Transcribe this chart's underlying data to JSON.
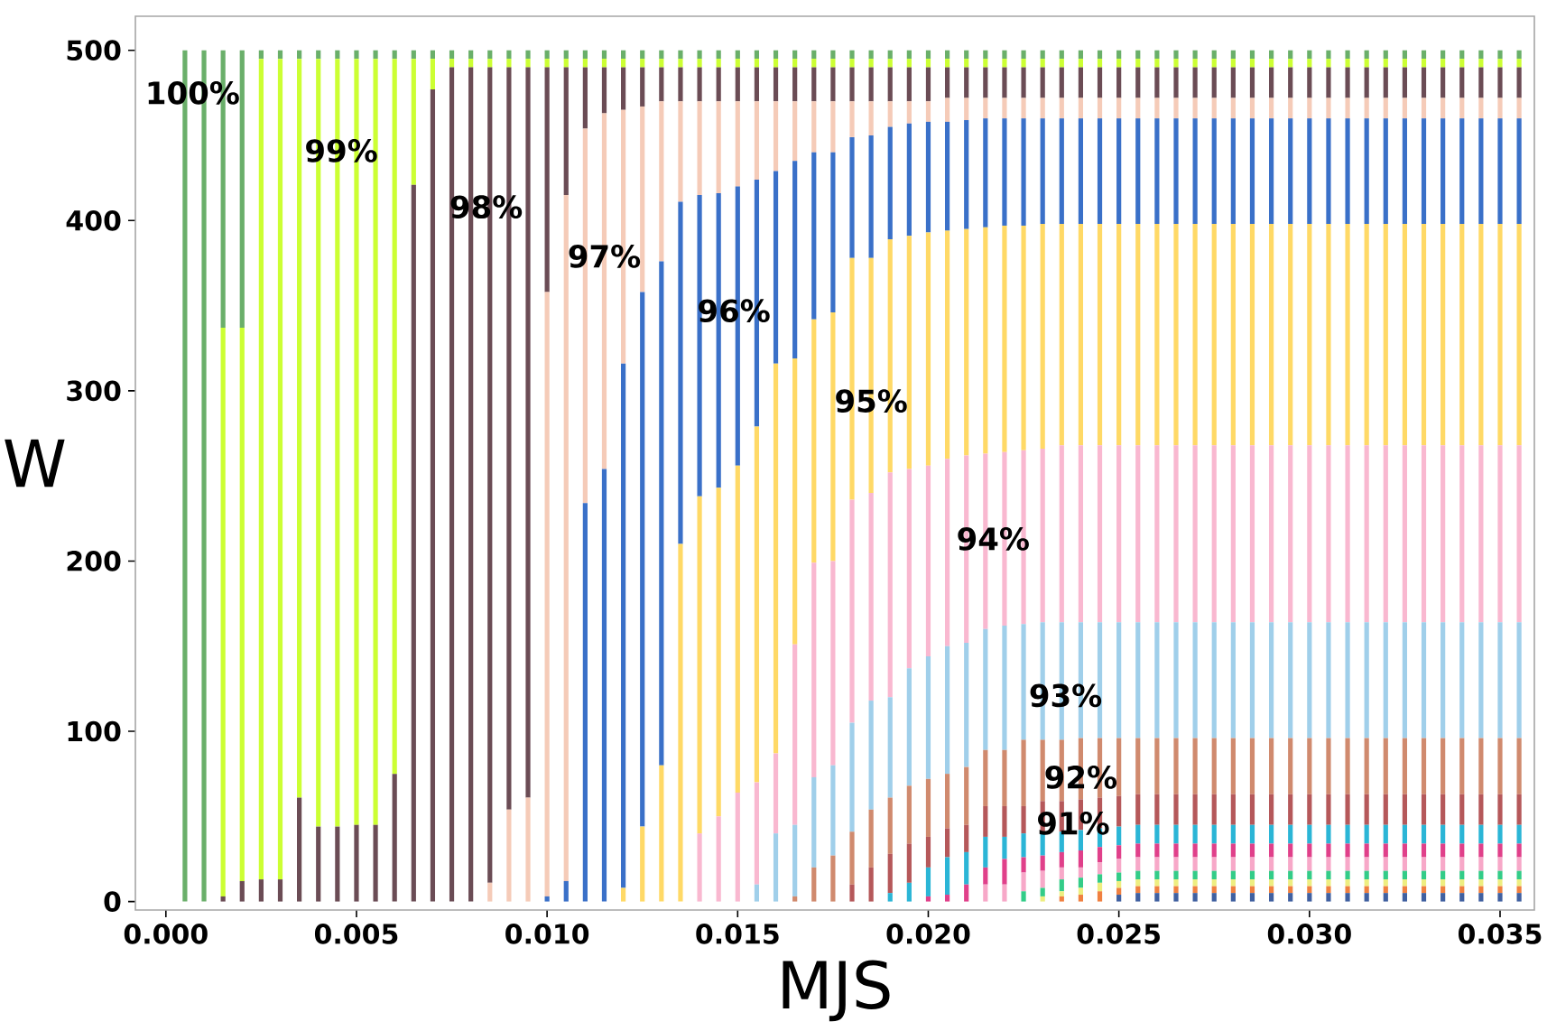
{
  "chart_data": {
    "type": "bar",
    "stacked": true,
    "xlabel": "MJS",
    "ylabel": "W",
    "xlim": [
      -0.0008,
      0.0359
    ],
    "ylim": [
      -5,
      520
    ],
    "xticks": [
      {
        "value": 0,
        "label": "0.000"
      },
      {
        "value": 0.005,
        "label": "0.005"
      },
      {
        "value": 0.01,
        "label": "0.010"
      },
      {
        "value": 0.015,
        "label": "0.015"
      },
      {
        "value": 0.02,
        "label": "0.020"
      },
      {
        "value": 0.025,
        "label": "0.025"
      },
      {
        "value": 0.03,
        "label": "0.030"
      },
      {
        "value": 0.035,
        "label": "0.035"
      }
    ],
    "yticks": [
      0,
      100,
      200,
      300,
      400,
      500
    ],
    "x": [
      0.0005,
      0.001,
      0.0015,
      0.002,
      0.0025,
      0.003,
      0.0035,
      0.004,
      0.0045,
      0.005,
      0.0055,
      0.006,
      0.0065,
      0.007,
      0.0075,
      0.008,
      0.0085,
      0.009,
      0.0095,
      0.01,
      0.0105,
      0.011,
      0.0115,
      0.012,
      0.0125,
      0.013,
      0.0135,
      0.014,
      0.0145,
      0.015,
      0.0155,
      0.016,
      0.0165,
      0.017,
      0.0175,
      0.018,
      0.0185,
      0.019,
      0.0195,
      0.02,
      0.0205,
      0.021,
      0.0215,
      0.022,
      0.0225,
      0.023,
      0.0235,
      0.024,
      0.0245,
      0.025,
      0.0255,
      0.026,
      0.0265,
      0.027,
      0.0275,
      0.028,
      0.0285,
      0.029,
      0.0295,
      0.03,
      0.0305,
      0.031,
      0.0315,
      0.032,
      0.0325,
      0.033,
      0.0335,
      0.034,
      0.0345,
      0.035,
      0.0355
    ],
    "series": [
      {
        "color": "#4060a0",
        "values": [
          0,
          0,
          0,
          0,
          0,
          0,
          0,
          0,
          0,
          0,
          0,
          0,
          0,
          0,
          0,
          0,
          0,
          0,
          0,
          0,
          0,
          0,
          0,
          0,
          0,
          0,
          0,
          0,
          0,
          0,
          0,
          0,
          0,
          0,
          0,
          0,
          0,
          0,
          0,
          0,
          0,
          0,
          0,
          0,
          0,
          0,
          0,
          0,
          0,
          4,
          5,
          5,
          5,
          5,
          5,
          5,
          5,
          5,
          5,
          5,
          5,
          5,
          5,
          5,
          5,
          5,
          5,
          5,
          5,
          5,
          5
        ]
      },
      {
        "color": "#f08040",
        "values": [
          0,
          0,
          0,
          0,
          0,
          0,
          0,
          0,
          0,
          0,
          0,
          0,
          0,
          0,
          0,
          0,
          0,
          0,
          0,
          0,
          0,
          0,
          0,
          0,
          0,
          0,
          0,
          0,
          0,
          0,
          0,
          0,
          0,
          0,
          0,
          0,
          0,
          0,
          0,
          0,
          0,
          0,
          0,
          0,
          0,
          0,
          3,
          4,
          6,
          4,
          4,
          4,
          4,
          4,
          4,
          4,
          4,
          4,
          4,
          4,
          4,
          4,
          4,
          4,
          4,
          4,
          4,
          4,
          4,
          4,
          4
        ]
      },
      {
        "color": "#eeee80",
        "values": [
          0,
          0,
          0,
          0,
          0,
          0,
          0,
          0,
          0,
          0,
          0,
          0,
          0,
          0,
          0,
          0,
          0,
          0,
          0,
          0,
          0,
          0,
          0,
          0,
          0,
          0,
          0,
          0,
          0,
          0,
          0,
          0,
          0,
          0,
          0,
          0,
          0,
          0,
          0,
          0,
          0,
          0,
          0,
          0,
          0,
          3,
          3,
          4,
          5,
          4,
          4,
          4,
          4,
          4,
          4,
          4,
          4,
          4,
          4,
          4,
          4,
          4,
          4,
          4,
          4,
          4,
          4,
          4,
          4,
          4,
          4
        ]
      },
      {
        "color": "#33cc88",
        "values": [
          0,
          0,
          0,
          0,
          0,
          0,
          0,
          0,
          0,
          0,
          0,
          0,
          0,
          0,
          0,
          0,
          0,
          0,
          0,
          0,
          0,
          0,
          0,
          0,
          0,
          0,
          0,
          0,
          0,
          0,
          0,
          0,
          0,
          0,
          0,
          0,
          0,
          0,
          0,
          0,
          0,
          0,
          0,
          0,
          6,
          5,
          7,
          6,
          5,
          5,
          5,
          5,
          5,
          5,
          5,
          5,
          5,
          5,
          5,
          5,
          5,
          5,
          5,
          5,
          5,
          5,
          5,
          5,
          5,
          5,
          5
        ]
      },
      {
        "color": "#f7a8c8",
        "values": [
          0,
          0,
          0,
          0,
          0,
          0,
          0,
          0,
          0,
          0,
          0,
          0,
          0,
          0,
          0,
          0,
          0,
          0,
          0,
          0,
          0,
          0,
          0,
          0,
          0,
          0,
          0,
          0,
          0,
          0,
          0,
          0,
          0,
          0,
          0,
          0,
          0,
          0,
          0,
          0,
          0,
          0,
          10,
          10,
          11,
          10,
          7,
          6,
          7,
          8,
          8,
          8,
          8,
          8,
          8,
          8,
          8,
          8,
          8,
          8,
          8,
          8,
          8,
          8,
          8,
          8,
          8,
          8,
          8,
          8,
          8
        ]
      },
      {
        "color": "#e0408a",
        "values": [
          0,
          0,
          0,
          0,
          0,
          0,
          0,
          0,
          0,
          0,
          0,
          0,
          0,
          0,
          0,
          0,
          0,
          0,
          0,
          0,
          0,
          0,
          0,
          0,
          0,
          0,
          0,
          0,
          0,
          0,
          0,
          0,
          0,
          0,
          0,
          0,
          0,
          0,
          0,
          3,
          4,
          10,
          10,
          15,
          9,
          9,
          9,
          10,
          9,
          8,
          8,
          8,
          8,
          8,
          8,
          8,
          8,
          8,
          8,
          8,
          8,
          8,
          8,
          8,
          8,
          8,
          8,
          8,
          8,
          8,
          8
        ]
      },
      {
        "color": "#2bb5d6",
        "values": [
          0,
          0,
          0,
          0,
          0,
          0,
          0,
          0,
          0,
          0,
          0,
          0,
          0,
          0,
          0,
          0,
          0,
          0,
          0,
          0,
          0,
          0,
          0,
          0,
          0,
          0,
          0,
          0,
          0,
          0,
          0,
          0,
          0,
          0,
          0,
          0,
          0,
          5,
          11,
          17,
          22,
          19,
          18,
          13,
          14,
          14,
          12,
          12,
          11,
          11,
          11,
          11,
          11,
          11,
          11,
          11,
          11,
          11,
          11,
          11,
          11,
          11,
          11,
          11,
          11,
          11,
          11,
          11,
          11,
          11,
          11
        ]
      },
      {
        "color": "#b5585a",
        "values": [
          0,
          0,
          0,
          0,
          0,
          0,
          0,
          0,
          0,
          0,
          0,
          0,
          0,
          0,
          0,
          0,
          0,
          0,
          0,
          0,
          0,
          0,
          0,
          0,
          0,
          0,
          0,
          0,
          0,
          0,
          0,
          0,
          0,
          0,
          0,
          10,
          20,
          23,
          23,
          18,
          17,
          16,
          18,
          18,
          16,
          18,
          18,
          18,
          18,
          18,
          18,
          18,
          18,
          18,
          18,
          18,
          18,
          18,
          18,
          18,
          18,
          18,
          18,
          18,
          18,
          18,
          18,
          18,
          18,
          18,
          18
        ]
      },
      {
        "color": "#d08a6e",
        "values": [
          0,
          0,
          0,
          0,
          0,
          0,
          0,
          0,
          0,
          0,
          0,
          0,
          0,
          0,
          0,
          0,
          0,
          0,
          0,
          0,
          0,
          0,
          0,
          0,
          0,
          0,
          0,
          0,
          0,
          0,
          0,
          0,
          3,
          20,
          27,
          31,
          34,
          33,
          34,
          34,
          32,
          34,
          33,
          33,
          39,
          36,
          36,
          36,
          35,
          34,
          33,
          33,
          33,
          33,
          33,
          33,
          33,
          33,
          33,
          33,
          33,
          33,
          33,
          33,
          33,
          33,
          33,
          33,
          33,
          33,
          33
        ]
      },
      {
        "color": "#a0cfea",
        "values": [
          0,
          0,
          0,
          0,
          0,
          0,
          0,
          0,
          0,
          0,
          0,
          0,
          0,
          0,
          0,
          0,
          0,
          0,
          0,
          0,
          0,
          0,
          0,
          0,
          0,
          0,
          0,
          0,
          0,
          0,
          10,
          40,
          42,
          53,
          53,
          64,
          64,
          59,
          69,
          72,
          75,
          73,
          71,
          73,
          68,
          69,
          69,
          68,
          68,
          68,
          68,
          68,
          68,
          68,
          68,
          68,
          68,
          68,
          68,
          68,
          68,
          68,
          68,
          68,
          68,
          68,
          68,
          68,
          68,
          68,
          68
        ]
      },
      {
        "color": "#f9b8d0",
        "values": [
          0,
          0,
          0,
          0,
          0,
          0,
          0,
          0,
          0,
          0,
          0,
          0,
          0,
          0,
          0,
          0,
          0,
          0,
          0,
          0,
          0,
          0,
          0,
          0,
          0,
          0,
          0,
          40,
          50,
          64,
          60,
          47,
          106,
          126,
          120,
          131,
          122,
          132,
          117,
          112,
          110,
          110,
          103,
          102,
          102,
          102,
          104,
          104,
          104,
          104,
          104,
          104,
          104,
          104,
          104,
          104,
          104,
          104,
          104,
          104,
          104,
          104,
          104,
          104,
          104,
          104,
          104,
          104,
          104,
          104,
          104
        ]
      },
      {
        "color": "#ffd966",
        "values": [
          0,
          0,
          0,
          0,
          0,
          0,
          0,
          0,
          0,
          0,
          0,
          0,
          0,
          0,
          0,
          0,
          0,
          0,
          0,
          0,
          0,
          0,
          0,
          8,
          44,
          80,
          210,
          198,
          193,
          192,
          209,
          229,
          168,
          143,
          146,
          142,
          138,
          137,
          137,
          137,
          134,
          133,
          133,
          133,
          132,
          132,
          130,
          130,
          130,
          130,
          130,
          130,
          130,
          130,
          130,
          130,
          130,
          130,
          130,
          130,
          130,
          130,
          130,
          130,
          130,
          130,
          130,
          130,
          130,
          130,
          130
        ]
      },
      {
        "color": "#3a70c8",
        "values": [
          0,
          0,
          0,
          0,
          0,
          0,
          0,
          0,
          0,
          0,
          0,
          0,
          0,
          0,
          0,
          0,
          0,
          0,
          0,
          3,
          12,
          234,
          254,
          308,
          314,
          296,
          201,
          177,
          173,
          164,
          145,
          113,
          116,
          98,
          94,
          71,
          72,
          66,
          66,
          65,
          64,
          64,
          64,
          63,
          63,
          62,
          62,
          62,
          62,
          62,
          62,
          62,
          62,
          62,
          62,
          62,
          62,
          62,
          62,
          62,
          62,
          62,
          62,
          62,
          62,
          62,
          62,
          62,
          62,
          62,
          62
        ]
      },
      {
        "color": "#f5cbb8",
        "values": [
          0,
          0,
          0,
          0,
          0,
          0,
          0,
          0,
          0,
          0,
          0,
          0,
          0,
          0,
          0,
          0,
          11,
          54,
          61,
          355,
          403,
          220,
          209,
          149,
          109,
          94,
          59,
          55,
          54,
          50,
          46,
          41,
          35,
          30,
          30,
          21,
          20,
          15,
          13,
          12,
          14,
          13,
          12,
          12,
          12,
          12,
          12,
          12,
          12,
          12,
          12,
          12,
          12,
          12,
          12,
          12,
          12,
          12,
          12,
          12,
          12,
          12,
          12,
          12,
          12,
          12,
          12,
          12,
          12,
          12,
          12
        ]
      },
      {
        "color": "#6b4c55",
        "values": [
          0,
          0,
          3,
          12,
          13,
          13,
          61,
          44,
          44,
          45,
          45,
          75,
          421,
          477,
          490,
          490,
          479,
          436,
          429,
          132,
          75,
          36,
          27,
          25,
          23,
          20,
          20,
          20,
          20,
          20,
          20,
          20,
          20,
          20,
          20,
          20,
          20,
          20,
          20,
          20,
          18,
          18,
          18,
          18,
          18,
          18,
          18,
          18,
          18,
          18,
          18,
          18,
          18,
          18,
          18,
          18,
          18,
          18,
          18,
          18,
          18,
          18,
          18,
          18,
          18,
          18,
          18,
          18,
          18,
          18,
          18
        ]
      },
      {
        "color": "#ccff33",
        "values": [
          0,
          0,
          334,
          325,
          482,
          482,
          434,
          451,
          451,
          450,
          450,
          420,
          74,
          18,
          5,
          5,
          5,
          5,
          5,
          5,
          5,
          5,
          5,
          5,
          5,
          5,
          5,
          5,
          5,
          5,
          5,
          5,
          5,
          5,
          5,
          5,
          5,
          5,
          5,
          5,
          5,
          5,
          5,
          5,
          5,
          5,
          5,
          5,
          5,
          5,
          5,
          5,
          5,
          5,
          5,
          5,
          5,
          5,
          5,
          5,
          5,
          5,
          5,
          5,
          5,
          5,
          5,
          5,
          5,
          5,
          5
        ]
      },
      {
        "color": "#6aaf6a",
        "values": [
          500,
          500,
          163,
          163,
          5,
          5,
          5,
          5,
          5,
          5,
          5,
          5,
          5,
          5,
          5,
          5,
          5,
          5,
          5,
          5,
          5,
          5,
          5,
          5,
          5,
          5,
          5,
          5,
          5,
          5,
          5,
          5,
          5,
          5,
          5,
          5,
          5,
          5,
          5,
          5,
          5,
          5,
          5,
          5,
          5,
          5,
          5,
          5,
          5,
          5,
          5,
          5,
          5,
          5,
          5,
          5,
          5,
          5,
          5,
          5,
          5,
          5,
          5,
          5,
          5,
          5,
          5,
          5,
          5,
          5,
          5
        ]
      }
    ],
    "annotations": [
      {
        "text": "100%",
        "x": 0.0007,
        "y": 475
      },
      {
        "text": "99%",
        "x": 0.0046,
        "y": 441
      },
      {
        "text": "98%",
        "x": 0.0084,
        "y": 408
      },
      {
        "text": "97%",
        "x": 0.0115,
        "y": 379
      },
      {
        "text": "96%",
        "x": 0.0149,
        "y": 347
      },
      {
        "text": "95%",
        "x": 0.0185,
        "y": 294
      },
      {
        "text": "94%",
        "x": 0.0217,
        "y": 213
      },
      {
        "text": "93%",
        "x": 0.0236,
        "y": 121
      },
      {
        "text": "92%",
        "x": 0.024,
        "y": 73
      },
      {
        "text": "91%",
        "x": 0.0238,
        "y": 46
      }
    ]
  }
}
